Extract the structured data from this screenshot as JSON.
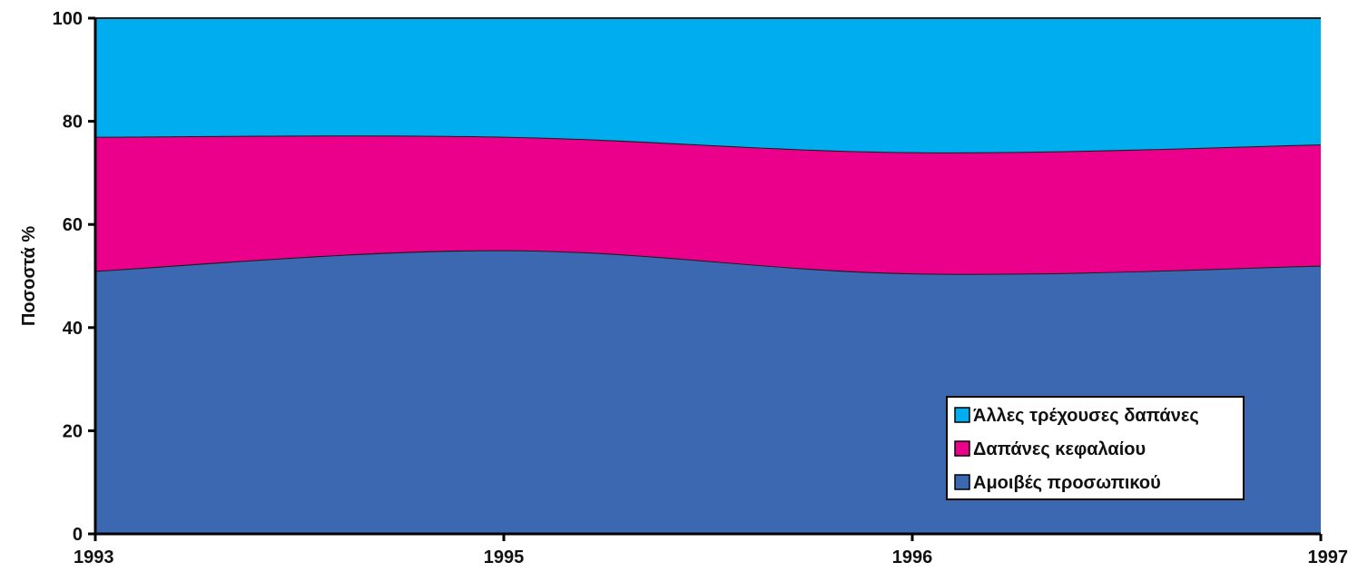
{
  "chart_data": {
    "type": "area",
    "stacked": true,
    "percent": true,
    "ylabel": "Ποσοστά %",
    "xlabel": "",
    "title": "",
    "x": [
      "1993",
      "1995",
      "1996",
      "1997"
    ],
    "yticks": [
      "0",
      "20",
      "40",
      "60",
      "80",
      "100"
    ],
    "ylim": [
      0,
      100
    ],
    "grid": false,
    "legend_position": "bottom-right",
    "series": [
      {
        "name": "Αμοιβές προσωπικού",
        "values": [
          51,
          55,
          50.5,
          52
        ],
        "color": "#3c67b1"
      },
      {
        "name": "Δαπάνες κεφαλαίου",
        "values": [
          26,
          22,
          23.5,
          23.5
        ],
        "color": "#ea008a"
      },
      {
        "name": "Άλλες τρέχουσες δαπάνες",
        "values": [
          23,
          23,
          26,
          24.5
        ],
        "color": "#00adee"
      }
    ],
    "legend_order": [
      2,
      1,
      0
    ]
  }
}
